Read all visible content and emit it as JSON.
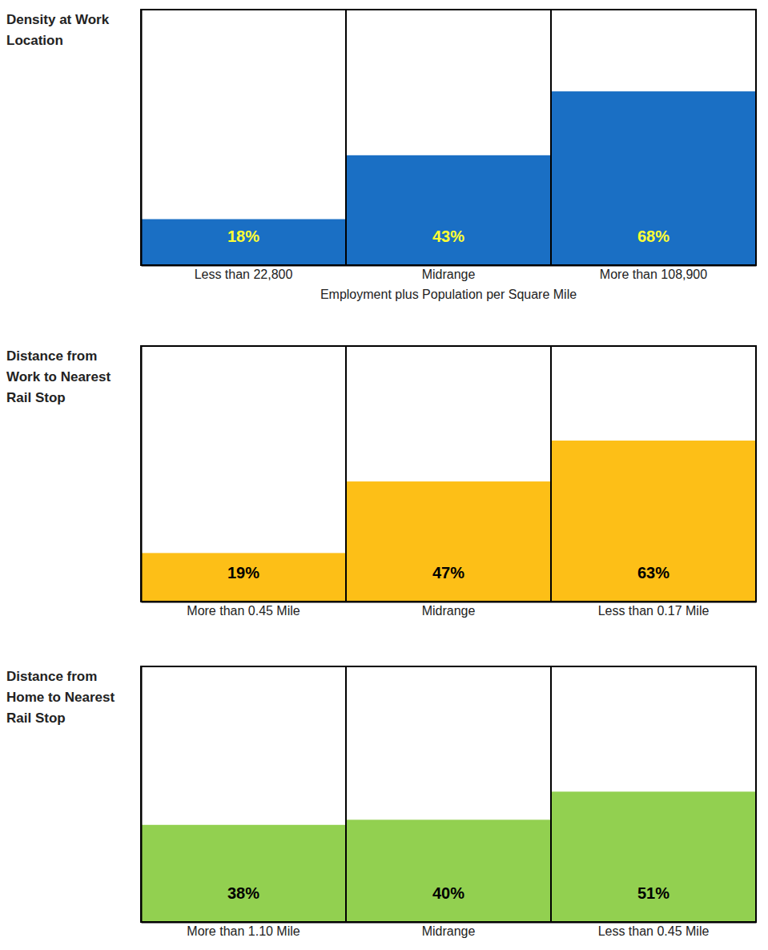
{
  "chart_data": [
    {
      "type": "bar",
      "title": "Density at Work Location",
      "xlabel": "Employment plus Population per Square Mile",
      "categories": [
        "Less than 22,800",
        "Midrange",
        "More than 108,900"
      ],
      "values": [
        18,
        43,
        68
      ],
      "value_labels": [
        "18%",
        "43%",
        "68%"
      ],
      "color": "#1a6fc4",
      "ylim": [
        0,
        100
      ],
      "data_labels": true,
      "tick_labels": "x",
      "grid": false
    },
    {
      "type": "bar",
      "title": "Distance from Work to Nearest Rail Stop",
      "categories": [
        "More than 0.45 Mile",
        "Midrange",
        "Less than 0.17 Mile"
      ],
      "values": [
        19,
        47,
        63
      ],
      "value_labels": [
        "19%",
        "47%",
        "63%"
      ],
      "color": "#fdbf17",
      "ylim": [
        0,
        100
      ],
      "data_labels": true,
      "tick_labels": "x",
      "grid": false
    },
    {
      "type": "bar",
      "title": "Distance from Home to Nearest Rail Stop",
      "categories": [
        "More than 1.10 Mile",
        "Midrange",
        "Less than 0.45 Mile"
      ],
      "values": [
        38,
        40,
        51
      ],
      "value_labels": [
        "38%",
        "40%",
        "51%"
      ],
      "color": "#92d050",
      "ylim": [
        0,
        100
      ],
      "data_labels": true,
      "tick_labels": "x",
      "grid": false
    }
  ]
}
